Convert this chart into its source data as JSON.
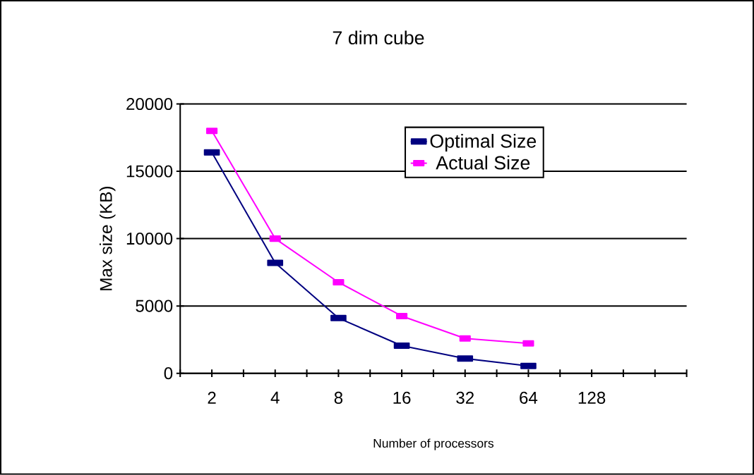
{
  "chart_data": {
    "type": "line",
    "title": "7 dim cube",
    "xlabel": "Number of processors",
    "ylabel": "Max size (KB)",
    "categories": [
      "2",
      "4",
      "8",
      "16",
      "32",
      "64",
      "128",
      null
    ],
    "series": [
      {
        "name": "Optimal Size",
        "color": "#000080",
        "values": [
          16400,
          8200,
          4100,
          2050,
          1100,
          550,
          null,
          null
        ]
      },
      {
        "name": "Actual Size",
        "color": "#ff00ff",
        "values": [
          18000,
          10000,
          6760,
          4250,
          2590,
          2220,
          null,
          null
        ]
      }
    ],
    "ylim": [
      0,
      20000
    ],
    "yticks": [
      0,
      5000,
      10000,
      15000,
      20000
    ],
    "grid": "y",
    "legend": "top right",
    "marker": "square",
    "line_style": "solid"
  }
}
